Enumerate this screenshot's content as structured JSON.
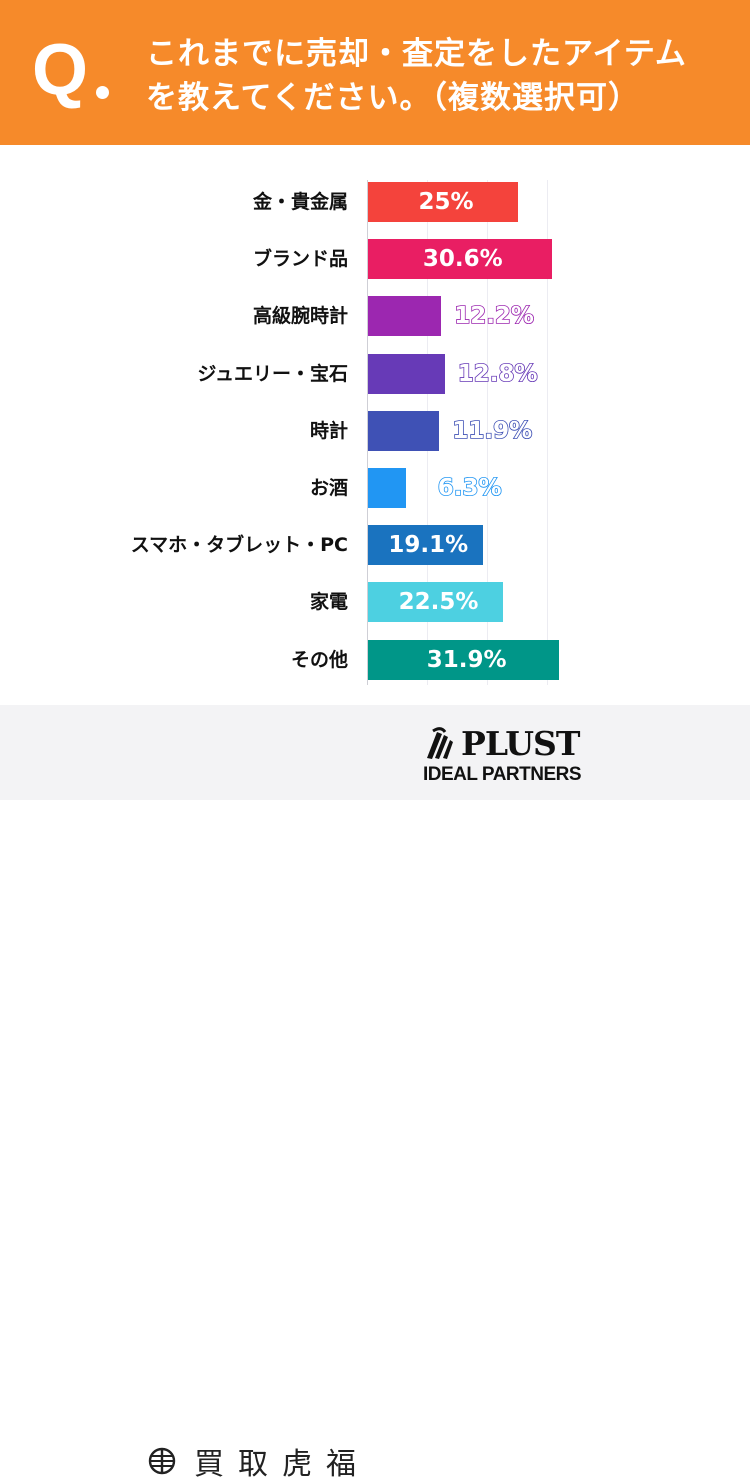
{
  "header": {
    "q_mark": "Q",
    "question_line1": "これまでに売却・査定をしたアイテム",
    "question_line2": "を教えてください。（複数選択可）",
    "background_color": "#f68a2a"
  },
  "chart_data": {
    "type": "bar",
    "orientation": "horizontal",
    "title": "これまでに売却・査定をしたアイテムを教えてください。（複数選択可）",
    "xlabel": "",
    "ylabel": "",
    "unit": "%",
    "xlim": [
      0,
      31.9
    ],
    "grid": true,
    "gridline_step": 10,
    "categories": [
      "金・貴金属",
      "ブランド品",
      "高級腕時計",
      "ジュエリー・宝石",
      "時計",
      "お酒",
      "スマホ・タブレット・PC",
      "家電",
      "その他"
    ],
    "values": [
      25,
      30.6,
      12.2,
      12.8,
      11.9,
      6.3,
      19.1,
      22.5,
      31.9
    ],
    "value_labels": [
      "25%",
      "30.6%",
      "12.2%",
      "12.8%",
      "11.9%",
      "6.3%",
      "19.1%",
      "22.5%",
      "31.9%"
    ],
    "colors": [
      "#f4433c",
      "#e91e63",
      "#9c27b0",
      "#673ab7",
      "#3f51b5",
      "#2196f3",
      "#1a73bf",
      "#4dd0e1",
      "#009688"
    ],
    "label_position": [
      "inside",
      "inside",
      "outside",
      "outside",
      "outside",
      "outside",
      "inside",
      "inside",
      "inside"
    ]
  },
  "footer": {
    "logo1_text": "買取虎福",
    "logo2_main": "PLUST",
    "logo2_sub": "IDEAL PARTNERS"
  }
}
